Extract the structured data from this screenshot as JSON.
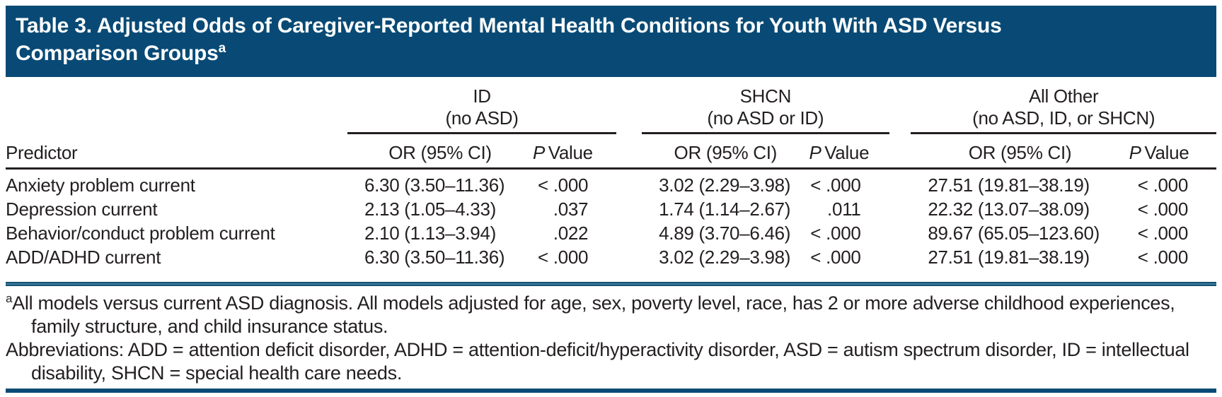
{
  "colors": {
    "navy": "#084a75",
    "rule_blue": "#3a7da0",
    "text": "#231f20"
  },
  "title": {
    "line1": "Table 3. Adjusted Odds of Caregiver-Reported Mental Health Conditions for Youth With ASD Versus",
    "line2": "Comparison Groups",
    "footnote_marker": "a"
  },
  "table": {
    "predictor_header": "Predictor",
    "or_label": "OR (95% CI)",
    "p_label_italic": "P",
    "p_label_rest": "Value",
    "groups": [
      {
        "name": "ID",
        "subtitle": "(no ASD)"
      },
      {
        "name": "SHCN",
        "subtitle": "(no ASD or ID)"
      },
      {
        "name": "All Other",
        "subtitle": "(no ASD, ID, or SHCN)"
      }
    ],
    "rows": [
      {
        "predictor": "Anxiety problem current",
        "id_or": "6.30 (3.50–11.36)",
        "id_p": "< .000",
        "shcn_or": "3.02 (2.29–3.98)",
        "shcn_p": "< .000",
        "other_or": "27.51 (19.81–38.19)",
        "other_p": "< .000"
      },
      {
        "predictor": "Depression current",
        "id_or": "2.13 (1.05–4.33)",
        "id_p": ".037",
        "shcn_or": "1.74 (1.14–2.67)",
        "shcn_p": ".011",
        "other_or": "22.32 (13.07–38.09)",
        "other_p": "< .000"
      },
      {
        "predictor": "Behavior/conduct problem current",
        "id_or": "2.10 (1.13–3.94)",
        "id_p": ".022",
        "shcn_or": "4.89 (3.70–6.46)",
        "shcn_p": "< .000",
        "other_or": "89.67 (65.05–123.60)",
        "other_p": "< .000"
      },
      {
        "predictor": "ADD/ADHD current",
        "id_or": "6.30 (3.50–11.36)",
        "id_p": "< .000",
        "shcn_or": "3.02 (2.29–3.98)",
        "shcn_p": "< .000",
        "other_or": "27.51 (19.81–38.19)",
        "other_p": "< .000"
      }
    ]
  },
  "footnotes": {
    "marker": "a",
    "models": "All models versus current ASD diagnosis. All models adjusted for age, sex, poverty level, race, has 2 or more adverse childhood experiences, family structure, and child insurance status.",
    "abbreviations": "Abbreviations: ADD = attention deficit disorder, ADHD = attention-deficit/hyperactivity disorder, ASD = autism spectrum disorder, ID = intellectual disability, SHCN = special health care needs."
  }
}
